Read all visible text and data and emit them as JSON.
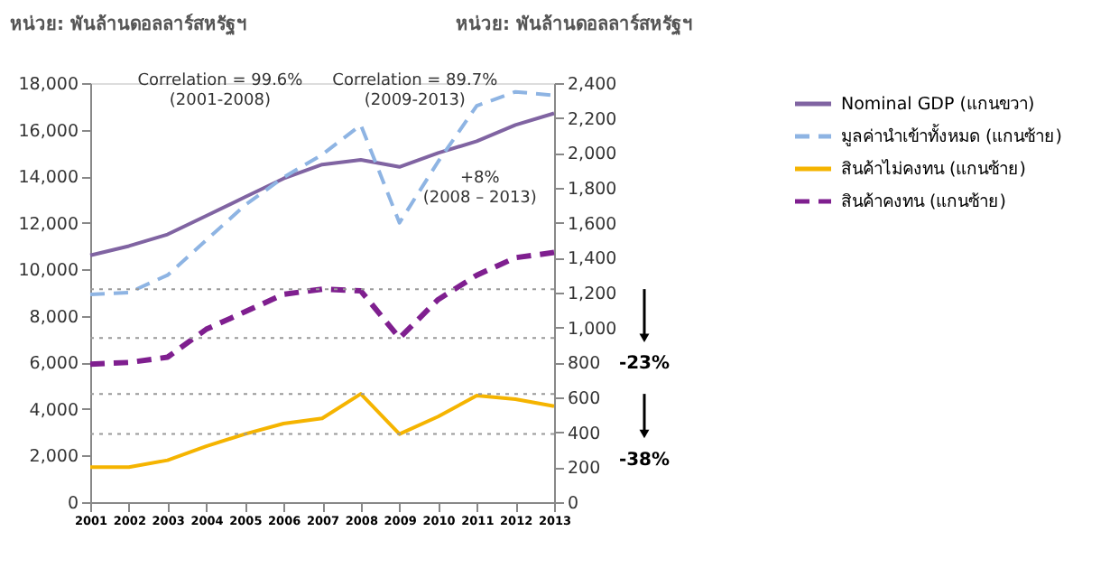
{
  "chart_data": {
    "type": "line",
    "ylabel": "หน่วย: พันล้านดอลลาร์สหรัฐฯ",
    "y2label": "หน่วย: พันล้านดอลลาร์สหรัฐฯ",
    "categories": [
      "2001",
      "2002",
      "2003",
      "2004",
      "2005",
      "2006",
      "2007",
      "2008",
      "2009",
      "2010",
      "2011",
      "2012",
      "2013"
    ],
    "series": [
      {
        "name": "Nominal GDP (แกนขวา)",
        "color": "#8064a2",
        "line_style": "solid",
        "values": [
          10600,
          11000,
          11500,
          12300,
          13100,
          13900,
          14500,
          14700,
          14400,
          15000,
          15500,
          16200,
          16700
        ]
      },
      {
        "name": "มูลค่านำเข้าทั้งหมด (แกนซ้าย)",
        "color": "#8eb4e3",
        "line_style": "dashed",
        "axis": "y2",
        "values": [
          1190,
          1200,
          1300,
          1500,
          1700,
          1860,
          1990,
          2160,
          1600,
          1950,
          2270,
          2350,
          2330
        ]
      },
      {
        "name": "สินค้าไม่คงทน (แกนซ้าย)",
        "color": "#f5b400",
        "line_style": "solid",
        "axis": "y2",
        "values": [
          200,
          200,
          240,
          320,
          390,
          450,
          480,
          620,
          390,
          490,
          610,
          590,
          550
        ]
      },
      {
        "name": "สินค้าคงทน (แกนซ้าย)",
        "color": "#7f1f8f",
        "line_style": "dashed",
        "axis": "y2",
        "values": [
          790,
          800,
          830,
          990,
          1090,
          1190,
          1220,
          1210,
          940,
          1160,
          1300,
          1400,
          1430
        ]
      }
    ],
    "ylim": [
      0,
      18000
    ],
    "yticks": [
      0,
      {
        "value": 2000,
        "label": "2,000"
      },
      {
        "value": 4000,
        "label": "4,000"
      },
      {
        "value": 6000,
        "label": "6,000"
      },
      {
        "value": 8000,
        "label": "8,000"
      },
      {
        "value": 10000,
        "label": "10,000"
      },
      {
        "value": 12000,
        "label": "12,000"
      },
      {
        "value": 14000,
        "label": "14,000"
      },
      {
        "value": 16000,
        "label": "16,000"
      },
      {
        "value": 18000,
        "label": "18,000"
      }
    ],
    "y2lim": [
      0,
      2400
    ],
    "y2ticks": [
      0,
      200,
      400,
      600,
      800,
      {
        "value": 1000,
        "label": "1,000"
      },
      {
        "value": 1200,
        "label": "1,200"
      },
      {
        "value": 1400,
        "label": "1,400"
      },
      {
        "value": 1600,
        "label": "1,600"
      },
      {
        "value": 1800,
        "label": "1,800"
      },
      {
        "value": 2000,
        "label": "2,000"
      },
      {
        "value": 2200,
        "label": "2,200"
      },
      {
        "value": 2400,
        "label": "2,400"
      }
    ],
    "ref_lines": [
      {
        "axis": "y2",
        "value": 1220,
        "color": "#999999",
        "line_style": "dotted"
      },
      {
        "axis": "y2",
        "value": 940,
        "color": "#999999",
        "line_style": "dotted"
      },
      {
        "axis": "y2",
        "value": 620,
        "color": "#999999",
        "line_style": "dotted"
      },
      {
        "axis": "y2",
        "value": 390,
        "color": "#999999",
        "line_style": "dotted"
      }
    ],
    "annotations": [
      "Correlation = 99.6%\n(2001-2008)",
      "Correlation = 89.7%\n(2009-2013)",
      "+8%\n(2008 – 2013)",
      "-23%",
      "-38%"
    ],
    "grid": false,
    "legend": "right"
  }
}
